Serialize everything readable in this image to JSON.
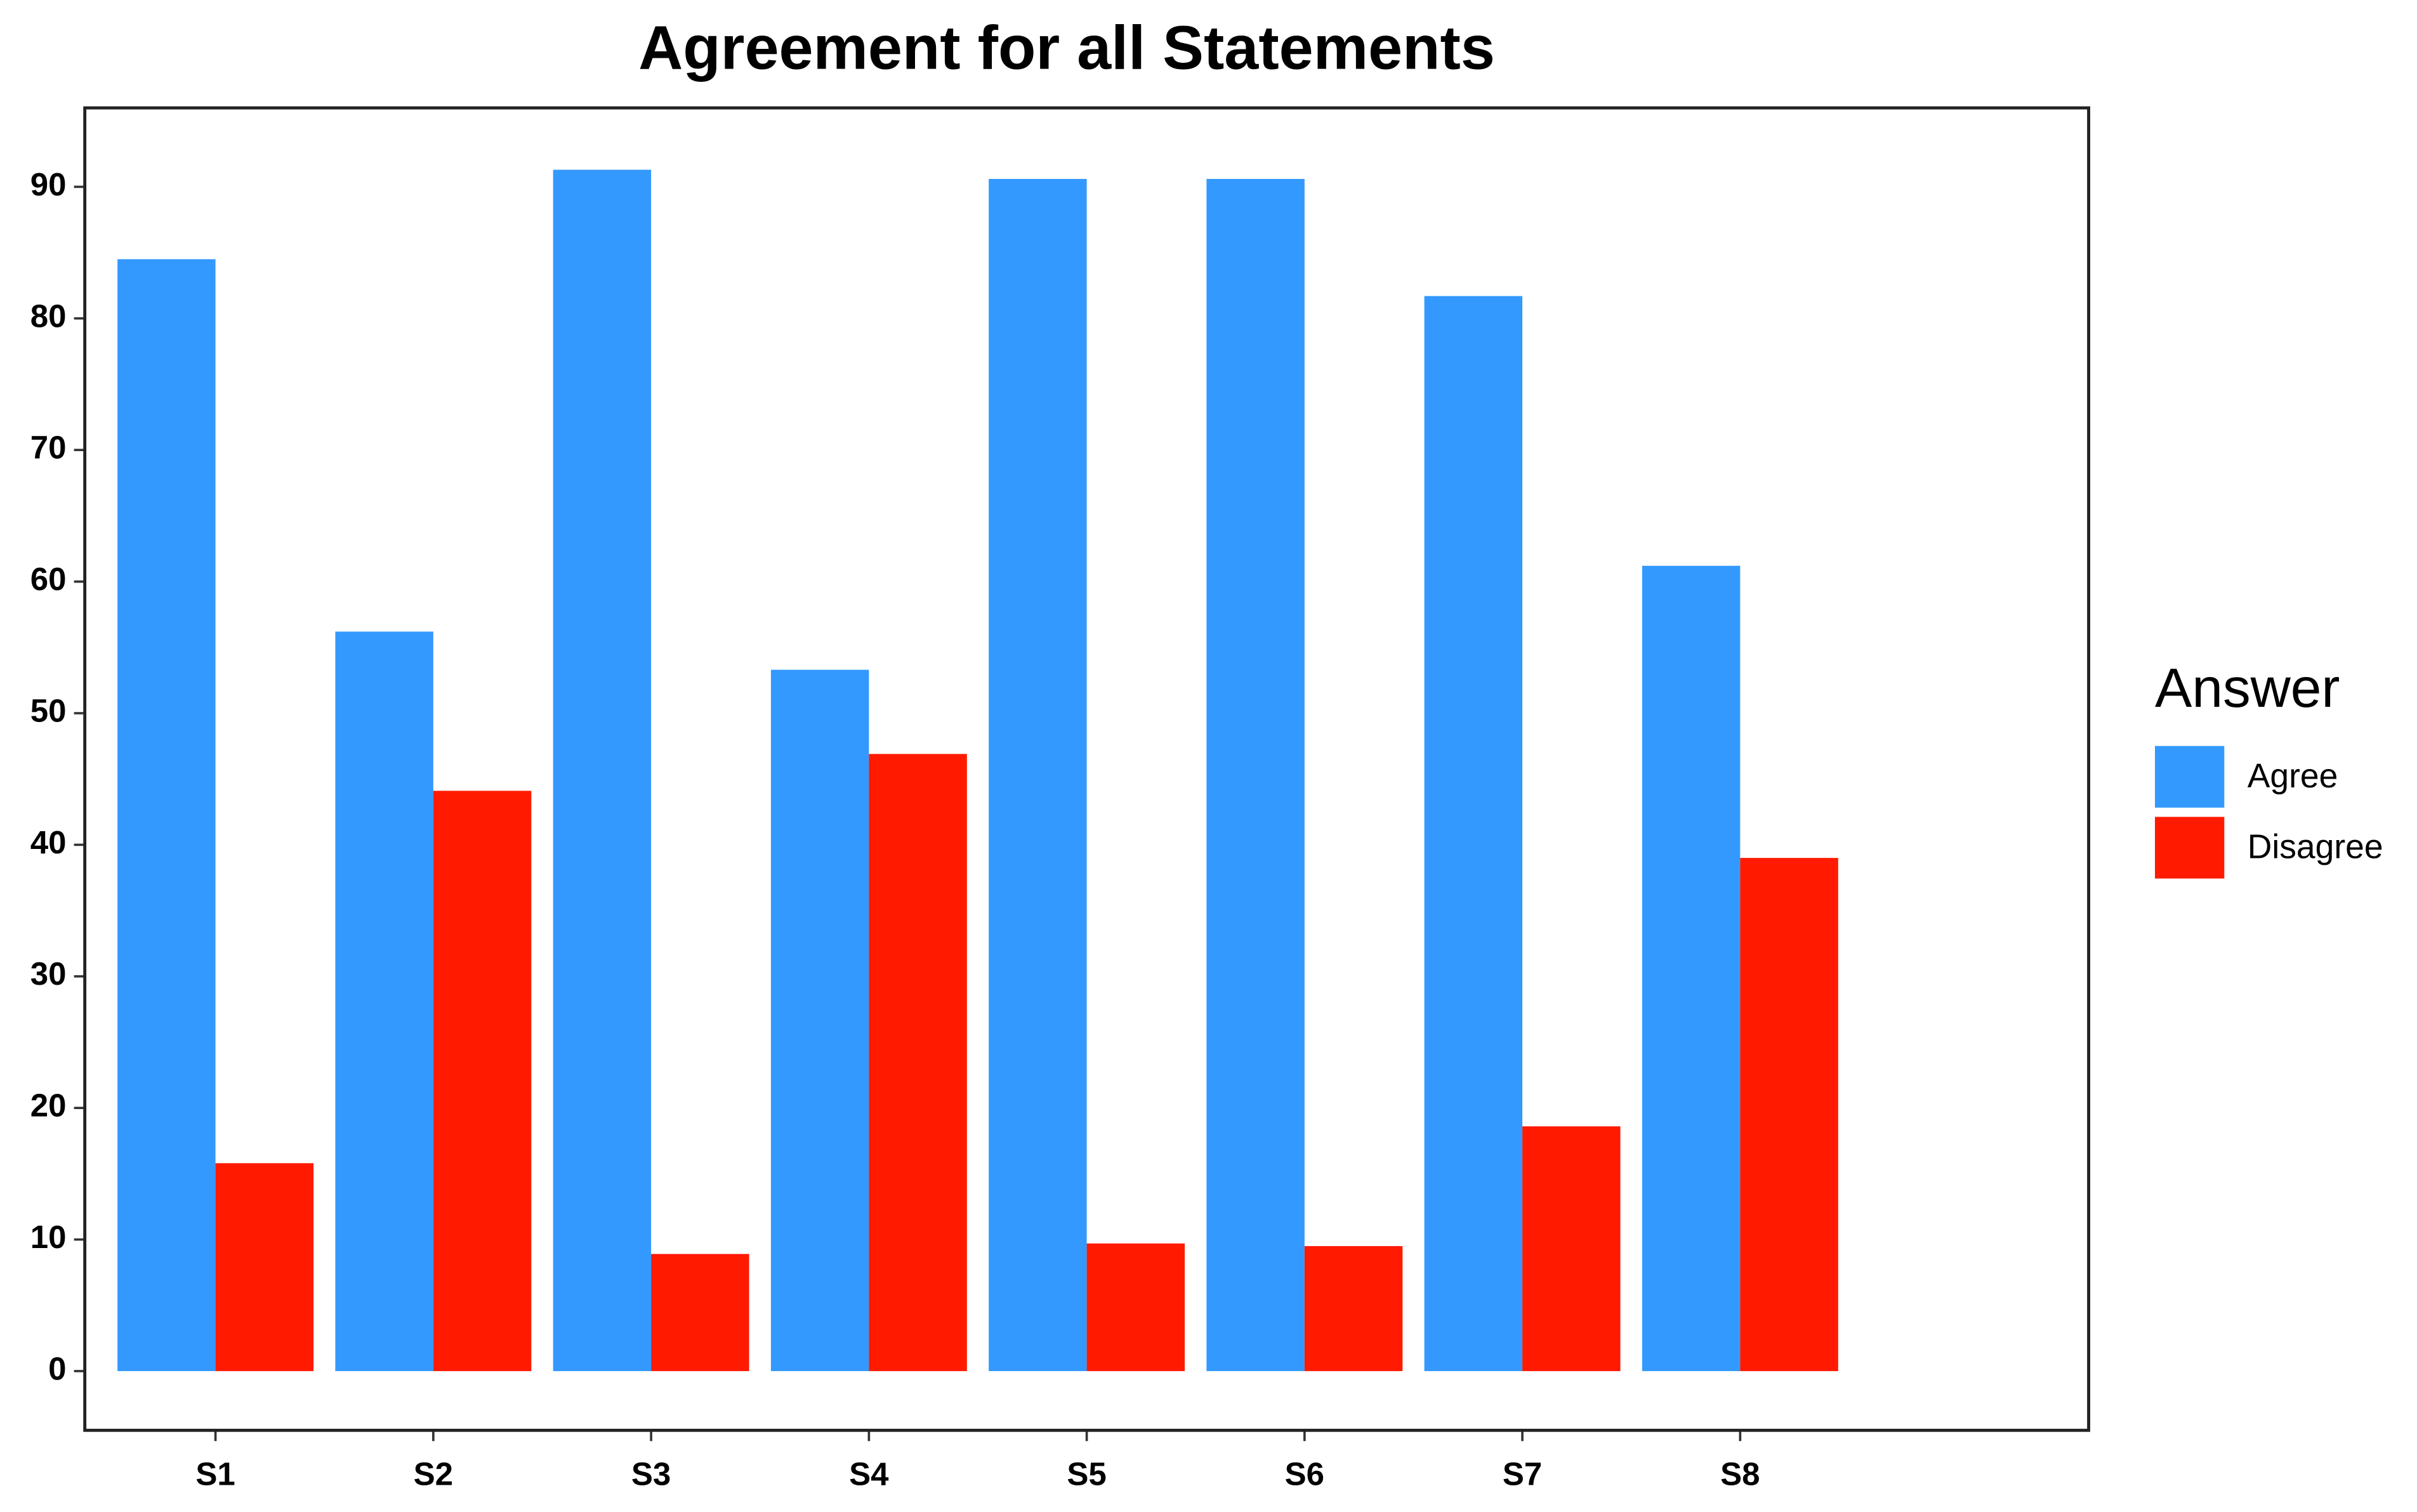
{
  "chart_data": {
    "type": "grouped_bar",
    "title": "Agreement for all Statements",
    "categories": [
      "S1",
      "S2",
      "S3",
      "S4",
      "S5",
      "S6",
      "S7",
      "S8"
    ],
    "series": [
      {
        "name": "Agree",
        "color": "#3399ff",
        "values": [
          84.5,
          56.2,
          91.3,
          53.3,
          90.6,
          90.6,
          81.7,
          61.2
        ]
      },
      {
        "name": "Disagree",
        "color": "#ff1a00",
        "values": [
          15.8,
          44.1,
          8.9,
          46.9,
          9.7,
          9.5,
          18.6,
          39.0
        ]
      }
    ],
    "legend_title": "Answer",
    "legend": "right",
    "ylim": [
      -4.5,
      96
    ],
    "yticks": [
      0,
      10,
      20,
      30,
      40,
      50,
      60,
      70,
      80,
      90
    ]
  }
}
